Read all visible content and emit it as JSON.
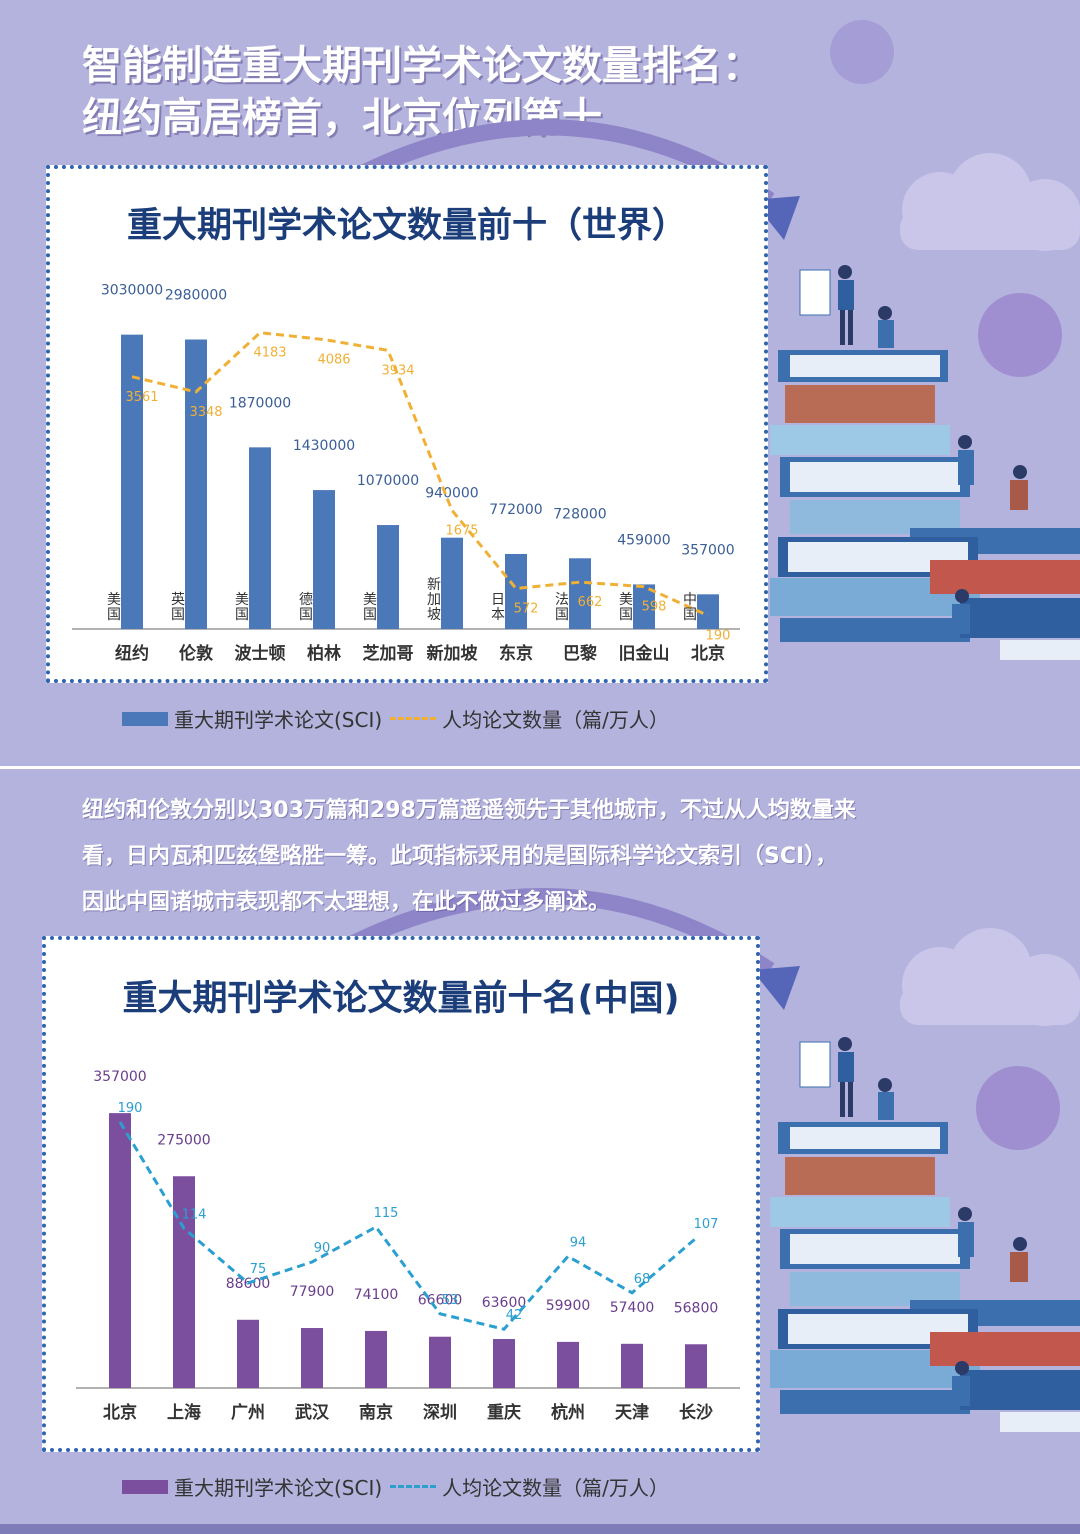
{
  "headline": {
    "line1": "智能制造重大期刊学术论文数量排名：",
    "line2": "纽约高居榜首，北京位列第十"
  },
  "paragraph": {
    "line1": "纽约和伦敦分别以303万篇和298万篇遥遥领先于其他城市，不过从人均数量来",
    "line2": "看，日内瓦和匹兹堡略胜一筹。此项指标采用的是国际科学论文索引（SCI），",
    "line3": "因此中国诸城市表现都不太理想，在此不做过多阐述。"
  },
  "colors": {
    "background": "#b4b3dd",
    "world_bar": "#4a78b8",
    "world_line": "#f0b035",
    "china_bar": "#7b4f9e",
    "china_line": "#2a9fd0",
    "title": "#1b3d7a"
  },
  "chart_data": [
    {
      "type": "bar",
      "title": "重大期刊学术论文数量前十（世界）",
      "categories": [
        "纽约",
        "伦敦",
        "波士顿",
        "柏林",
        "芝加哥",
        "新加坡",
        "东京",
        "巴黎",
        "旧金山",
        "北京"
      ],
      "countries": [
        "美国",
        "英国",
        "美国",
        "德国",
        "美国",
        "新加坡",
        "日本",
        "法国",
        "美国",
        "中国"
      ],
      "series": [
        {
          "name": "重大期刊学术论文(SCI)",
          "type": "bar",
          "values": [
            3030000,
            2980000,
            1870000,
            1430000,
            1070000,
            940000,
            772000,
            728000,
            459000,
            357000
          ]
        },
        {
          "name": "人均论文数量（篇/万人）",
          "type": "line",
          "style": "dashed",
          "values": [
            3561,
            3348,
            4183,
            4086,
            3934,
            1675,
            572,
            662,
            598,
            190
          ]
        }
      ],
      "ylim_bar": [
        0,
        3500000
      ],
      "ylim_line": [
        0,
        4800
      ],
      "grid": false,
      "legend_position": "bottom"
    },
    {
      "type": "bar",
      "title": "重大期刊学术论文数量前十名(中国)",
      "categories": [
        "北京",
        "上海",
        "广州",
        "武汉",
        "南京",
        "深圳",
        "重庆",
        "杭州",
        "天津",
        "长沙"
      ],
      "series": [
        {
          "name": "重大期刊学术论文(SCI)",
          "type": "bar",
          "values": [
            357000,
            275000,
            88600,
            77900,
            74100,
            66600,
            63600,
            59900,
            57400,
            56800
          ]
        },
        {
          "name": "人均论文数量（篇/万人）",
          "type": "line",
          "style": "dashed",
          "values": [
            190,
            114,
            75,
            90,
            115,
            53,
            42,
            94,
            68,
            107
          ]
        }
      ],
      "ylim_bar": [
        0,
        400000
      ],
      "ylim_line": [
        0,
        220
      ],
      "grid": false,
      "legend_position": "bottom"
    }
  ]
}
